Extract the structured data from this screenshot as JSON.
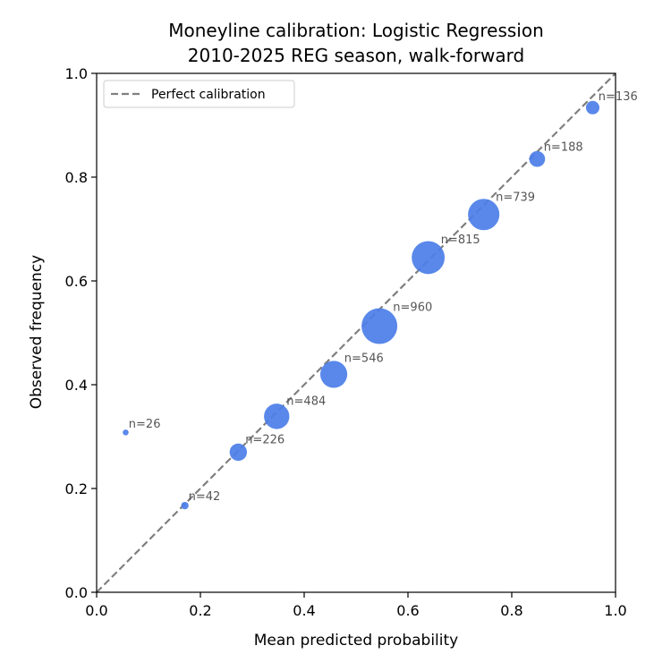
{
  "chart_data": {
    "type": "scatter",
    "title": "Moneyline calibration: Logistic Regression",
    "subtitle": "2010-2025 REG season, walk-forward",
    "xlabel": "Mean predicted probability",
    "ylabel": "Observed frequency",
    "xlim": [
      0.0,
      1.0
    ],
    "ylim": [
      0.0,
      1.0
    ],
    "xticks": [
      "0.0",
      "0.2",
      "0.4",
      "0.6",
      "0.8",
      "1.0"
    ],
    "yticks": [
      "0.0",
      "0.2",
      "0.4",
      "0.6",
      "0.8",
      "1.0"
    ],
    "grid": false,
    "legend": {
      "position": "top-left",
      "entries": [
        "Perfect calibration"
      ]
    },
    "reference_line": {
      "name": "Perfect calibration",
      "style": "dashed",
      "color": "#808080",
      "from": [
        0,
        0
      ],
      "to": [
        1,
        1
      ]
    },
    "marker_color": "#4c7ee8",
    "points": [
      {
        "x": 0.056,
        "y": 0.308,
        "n": 26,
        "label": "n=26"
      },
      {
        "x": 0.17,
        "y": 0.167,
        "n": 42,
        "label": "n=42"
      },
      {
        "x": 0.273,
        "y": 0.27,
        "n": 226,
        "label": "n=226"
      },
      {
        "x": 0.347,
        "y": 0.339,
        "n": 484,
        "label": "n=484"
      },
      {
        "x": 0.457,
        "y": 0.42,
        "n": 546,
        "label": "n=546"
      },
      {
        "x": 0.545,
        "y": 0.513,
        "n": 960,
        "label": "n=960"
      },
      {
        "x": 0.639,
        "y": 0.645,
        "n": 815,
        "label": "n=815"
      },
      {
        "x": 0.746,
        "y": 0.728,
        "n": 739,
        "label": "n=739"
      },
      {
        "x": 0.849,
        "y": 0.835,
        "n": 188,
        "label": "n=188"
      },
      {
        "x": 0.956,
        "y": 0.934,
        "n": 136,
        "label": "n=136"
      }
    ]
  }
}
